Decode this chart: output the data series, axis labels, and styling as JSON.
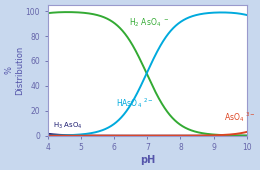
{
  "title": "",
  "xlabel": "pH",
  "ylabel": "%\nDistribution",
  "xlim": [
    4,
    10
  ],
  "ylim": [
    0,
    105
  ],
  "xticks": [
    4,
    5,
    6,
    7,
    8,
    9,
    10
  ],
  "yticks": [
    0,
    20,
    40,
    60,
    80,
    100
  ],
  "outer_bg": "#c8d8ee",
  "plot_bg": "#ffffff",
  "spine_color": "#9999cc",
  "tick_color": "#6666aa",
  "label_color": "#6666aa",
  "xlabel_color": "#5555aa",
  "ylabel_color": "#5555aa",
  "species_colors": [
    "#1a1a6e",
    "#33aa33",
    "#00aadd",
    "#dd4422"
  ],
  "pKa1": 2.2,
  "pKa2": 6.98,
  "pKa3": 11.5,
  "figsize": [
    2.6,
    1.7
  ],
  "dpi": 100,
  "lw": 1.4
}
